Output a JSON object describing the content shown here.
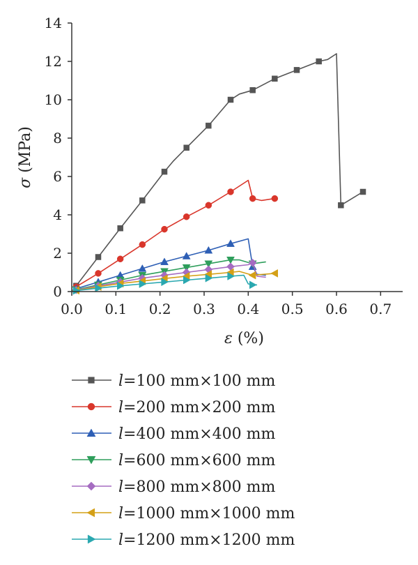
{
  "chart_data": {
    "type": "line",
    "title": "",
    "xlabel": "ε (%)",
    "ylabel": "σ (MPa)",
    "xlim": [
      0,
      0.75
    ],
    "ylim": [
      0,
      14
    ],
    "x_ticks": [
      "0.0",
      "0.1",
      "0.2",
      "0.3",
      "0.4",
      "0.5",
      "0.6",
      "0.7"
    ],
    "y_ticks": [
      "0",
      "2",
      "4",
      "6",
      "8",
      "10",
      "12",
      "14"
    ],
    "grid": false,
    "legend_position": "bottom",
    "series": [
      {
        "name": "l=100 mm×100 mm",
        "label_prefix": "l",
        "label_rest": "=100 mm×100 mm",
        "color": "#555555",
        "marker": "square",
        "line": [
          [
            0,
            0
          ],
          [
            0.01,
            0.3
          ],
          [
            0.06,
            1.8
          ],
          [
            0.11,
            3.3
          ],
          [
            0.16,
            4.75
          ],
          [
            0.21,
            6.25
          ],
          [
            0.23,
            6.8
          ],
          [
            0.26,
            7.5
          ],
          [
            0.31,
            8.65
          ],
          [
            0.36,
            10.0
          ],
          [
            0.38,
            10.3
          ],
          [
            0.41,
            10.5
          ],
          [
            0.46,
            11.1
          ],
          [
            0.51,
            11.55
          ],
          [
            0.56,
            12.0
          ],
          [
            0.58,
            12.1
          ],
          [
            0.6,
            12.4
          ],
          [
            0.61,
            4.5
          ],
          [
            0.66,
            5.2
          ]
        ],
        "markers": [
          [
            0.01,
            0.3
          ],
          [
            0.06,
            1.8
          ],
          [
            0.11,
            3.3
          ],
          [
            0.16,
            4.75
          ],
          [
            0.21,
            6.25
          ],
          [
            0.26,
            7.5
          ],
          [
            0.31,
            8.65
          ],
          [
            0.36,
            10.0
          ],
          [
            0.41,
            10.5
          ],
          [
            0.46,
            11.1
          ],
          [
            0.51,
            11.55
          ],
          [
            0.56,
            12.0
          ],
          [
            0.61,
            4.5
          ],
          [
            0.66,
            5.2
          ]
        ]
      },
      {
        "name": "l=200 mm×200 mm",
        "label_prefix": "l",
        "label_rest": "=200 mm×200 mm",
        "color": "#d9362b",
        "marker": "circle",
        "line": [
          [
            0,
            0
          ],
          [
            0.01,
            0.25
          ],
          [
            0.06,
            0.95
          ],
          [
            0.11,
            1.7
          ],
          [
            0.16,
            2.45
          ],
          [
            0.21,
            3.25
          ],
          [
            0.26,
            3.9
          ],
          [
            0.31,
            4.5
          ],
          [
            0.36,
            5.2
          ],
          [
            0.4,
            5.8
          ],
          [
            0.41,
            4.85
          ],
          [
            0.43,
            4.75
          ],
          [
            0.46,
            4.85
          ]
        ],
        "markers": [
          [
            0.01,
            0.25
          ],
          [
            0.06,
            0.95
          ],
          [
            0.11,
            1.7
          ],
          [
            0.16,
            2.45
          ],
          [
            0.21,
            3.25
          ],
          [
            0.26,
            3.9
          ],
          [
            0.31,
            4.5
          ],
          [
            0.36,
            5.2
          ],
          [
            0.41,
            4.85
          ],
          [
            0.46,
            4.85
          ]
        ]
      },
      {
        "name": "l=400 mm×400 mm",
        "label_prefix": "l",
        "label_rest": "=400 mm×400 mm",
        "color": "#2e5fb5",
        "marker": "triangle-up",
        "line": [
          [
            0,
            0
          ],
          [
            0.01,
            0.15
          ],
          [
            0.06,
            0.5
          ],
          [
            0.11,
            0.85
          ],
          [
            0.16,
            1.2
          ],
          [
            0.21,
            1.55
          ],
          [
            0.26,
            1.85
          ],
          [
            0.31,
            2.15
          ],
          [
            0.36,
            2.5
          ],
          [
            0.4,
            2.75
          ],
          [
            0.41,
            1.3
          ],
          [
            0.42,
            0.9
          ],
          [
            0.44,
            0.85
          ]
        ],
        "markers": [
          [
            0.01,
            0.15
          ],
          [
            0.06,
            0.5
          ],
          [
            0.11,
            0.85
          ],
          [
            0.16,
            1.2
          ],
          [
            0.21,
            1.55
          ],
          [
            0.26,
            1.85
          ],
          [
            0.31,
            2.15
          ],
          [
            0.36,
            2.5
          ],
          [
            0.41,
            1.3
          ]
        ]
      },
      {
        "name": "l=600 mm×600 mm",
        "label_prefix": "l",
        "label_rest": "=600 mm×600 mm",
        "color": "#2e9e5b",
        "marker": "triangle-down",
        "line": [
          [
            0,
            0
          ],
          [
            0.01,
            0.1
          ],
          [
            0.06,
            0.35
          ],
          [
            0.11,
            0.6
          ],
          [
            0.16,
            0.85
          ],
          [
            0.21,
            1.05
          ],
          [
            0.26,
            1.25
          ],
          [
            0.31,
            1.45
          ],
          [
            0.36,
            1.65
          ],
          [
            0.38,
            1.65
          ],
          [
            0.41,
            1.45
          ],
          [
            0.44,
            1.55
          ]
        ],
        "markers": [
          [
            0.01,
            0.1
          ],
          [
            0.06,
            0.35
          ],
          [
            0.11,
            0.6
          ],
          [
            0.16,
            0.85
          ],
          [
            0.21,
            1.05
          ],
          [
            0.26,
            1.25
          ],
          [
            0.31,
            1.45
          ],
          [
            0.36,
            1.65
          ],
          [
            0.41,
            1.45
          ]
        ]
      },
      {
        "name": "l=800 mm×800 mm",
        "label_prefix": "l",
        "label_rest": "=800 mm×800 mm",
        "color": "#a56cc1",
        "marker": "diamond",
        "line": [
          [
            0,
            0
          ],
          [
            0.01,
            0.08
          ],
          [
            0.06,
            0.3
          ],
          [
            0.11,
            0.5
          ],
          [
            0.16,
            0.7
          ],
          [
            0.21,
            0.85
          ],
          [
            0.26,
            1.0
          ],
          [
            0.31,
            1.15
          ],
          [
            0.36,
            1.3
          ],
          [
            0.4,
            1.4
          ],
          [
            0.41,
            1.5
          ],
          [
            0.42,
            0.8
          ],
          [
            0.44,
            0.75
          ]
        ],
        "markers": [
          [
            0.01,
            0.08
          ],
          [
            0.06,
            0.3
          ],
          [
            0.11,
            0.5
          ],
          [
            0.16,
            0.7
          ],
          [
            0.21,
            0.85
          ],
          [
            0.26,
            1.0
          ],
          [
            0.31,
            1.15
          ],
          [
            0.36,
            1.3
          ],
          [
            0.41,
            1.5
          ]
        ]
      },
      {
        "name": "l=1000 mm×1000 mm",
        "label_prefix": "l",
        "label_rest": "=1000 mm×1000 mm",
        "color": "#d4a017",
        "marker": "triangle-left",
        "line": [
          [
            0,
            0
          ],
          [
            0.01,
            0.06
          ],
          [
            0.06,
            0.25
          ],
          [
            0.11,
            0.42
          ],
          [
            0.16,
            0.55
          ],
          [
            0.21,
            0.68
          ],
          [
            0.26,
            0.8
          ],
          [
            0.31,
            0.9
          ],
          [
            0.36,
            1.0
          ],
          [
            0.38,
            1.05
          ],
          [
            0.41,
            0.85
          ],
          [
            0.46,
            0.95
          ]
        ],
        "markers": [
          [
            0.01,
            0.06
          ],
          [
            0.06,
            0.25
          ],
          [
            0.11,
            0.42
          ],
          [
            0.16,
            0.55
          ],
          [
            0.21,
            0.68
          ],
          [
            0.26,
            0.8
          ],
          [
            0.31,
            0.9
          ],
          [
            0.36,
            1.0
          ],
          [
            0.41,
            0.85
          ],
          [
            0.46,
            0.95
          ]
        ]
      },
      {
        "name": "l=1200 mm×1200 mm",
        "label_prefix": "l",
        "label_rest": "=1200 mm×1200 mm",
        "color": "#2aa8b0",
        "marker": "triangle-right",
        "line": [
          [
            0,
            0
          ],
          [
            0.01,
            0.05
          ],
          [
            0.06,
            0.18
          ],
          [
            0.11,
            0.3
          ],
          [
            0.16,
            0.4
          ],
          [
            0.21,
            0.5
          ],
          [
            0.26,
            0.6
          ],
          [
            0.31,
            0.7
          ],
          [
            0.36,
            0.8
          ],
          [
            0.39,
            0.85
          ],
          [
            0.4,
            0.4
          ],
          [
            0.41,
            0.35
          ],
          [
            0.42,
            0.35
          ]
        ],
        "markers": [
          [
            0.01,
            0.05
          ],
          [
            0.06,
            0.18
          ],
          [
            0.11,
            0.3
          ],
          [
            0.16,
            0.4
          ],
          [
            0.21,
            0.5
          ],
          [
            0.26,
            0.6
          ],
          [
            0.31,
            0.7
          ],
          [
            0.36,
            0.8
          ],
          [
            0.41,
            0.35
          ]
        ]
      }
    ]
  }
}
